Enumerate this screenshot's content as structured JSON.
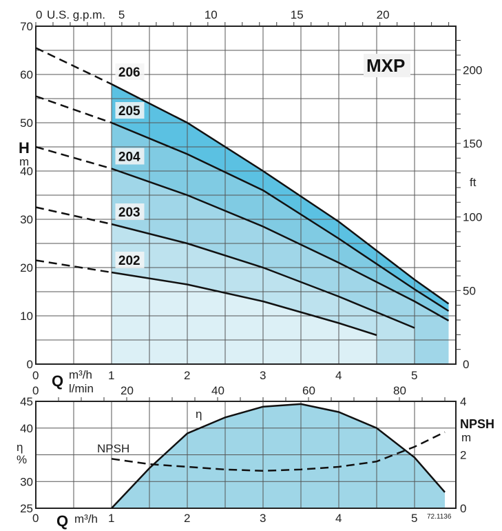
{
  "chart_data": [
    {
      "type": "line",
      "title": "MXP",
      "xlabel": "Q m³/h",
      "ylabel": "H m",
      "secondary_y_label": "ft",
      "secondary_x_label": "U.S. g.p.m.",
      "xlim": [
        0,
        5.5
      ],
      "ylim": [
        0,
        70
      ],
      "x_ticks": [
        "0",
        "1",
        "2",
        "3",
        "4",
        "5"
      ],
      "y_ticks": [
        "0",
        "10",
        "20",
        "30",
        "40",
        "50",
        "60",
        "70"
      ],
      "ft_ticks": [
        "0",
        "50",
        "100",
        "150",
        "200"
      ],
      "gpm_ticks": [
        "0",
        "5",
        "10",
        "15",
        "20"
      ],
      "series": [
        {
          "name": "206",
          "x": [
            0,
            1,
            2,
            3,
            4,
            5,
            5.45
          ],
          "y": [
            65.5,
            58,
            50,
            40,
            29.5,
            17.5,
            12.5
          ],
          "color": "#5bc1e2"
        },
        {
          "name": "205",
          "x": [
            0,
            1,
            2,
            3,
            4,
            5,
            5.45
          ],
          "y": [
            55.5,
            50,
            43.5,
            36,
            26,
            15.5,
            11
          ],
          "color": "#80cbe3"
        },
        {
          "name": "204",
          "x": [
            0,
            1,
            2,
            3,
            4,
            5,
            5.45
          ],
          "y": [
            45,
            40.5,
            35,
            28.5,
            21,
            13,
            9
          ],
          "color": "#a0d6e8"
        },
        {
          "name": "203",
          "x": [
            0,
            1,
            2,
            3,
            4,
            5
          ],
          "y": [
            32.5,
            29,
            25,
            20,
            14,
            7.5
          ],
          "color": "#bde2ee"
        },
        {
          "name": "202",
          "x": [
            0,
            1,
            2,
            3,
            4,
            4.5
          ],
          "y": [
            21.5,
            19,
            16.5,
            13,
            8.5,
            6
          ],
          "color": "#dcf0f6"
        }
      ]
    },
    {
      "type": "line",
      "xlabel": "Q m³/h",
      "xlabel_top": "l/min",
      "ylabel": "η %",
      "secondary_y_label": "NPSH m",
      "xlim": [
        0,
        5.5
      ],
      "ylim": [
        25,
        45
      ],
      "y2lim": [
        0,
        4
      ],
      "x_ticks": [
        "0",
        "1",
        "2",
        "3",
        "4",
        "5"
      ],
      "y_ticks": [
        "25",
        "30",
        "40",
        "45"
      ],
      "y2_ticks": [
        "0",
        "2",
        "4"
      ],
      "lmin_ticks": [
        "0",
        "20",
        "40",
        "60",
        "80"
      ],
      "code": "72.1136",
      "series": [
        {
          "name": "η",
          "x": [
            1,
            1.5,
            2,
            2.5,
            3,
            3.5,
            4,
            4.5,
            5,
            5.4
          ],
          "y": [
            25,
            32.5,
            39,
            42,
            44,
            44.5,
            43,
            40,
            34.5,
            28
          ],
          "color": "#9fd6e7"
        },
        {
          "name": "NPSH",
          "x": [
            1,
            1.5,
            2,
            2.5,
            3,
            3.5,
            4,
            4.5,
            5,
            5.4
          ],
          "y": [
            1.85,
            1.65,
            1.55,
            1.45,
            1.4,
            1.45,
            1.55,
            1.75,
            2.3,
            2.85
          ],
          "axis": "right"
        }
      ]
    }
  ]
}
